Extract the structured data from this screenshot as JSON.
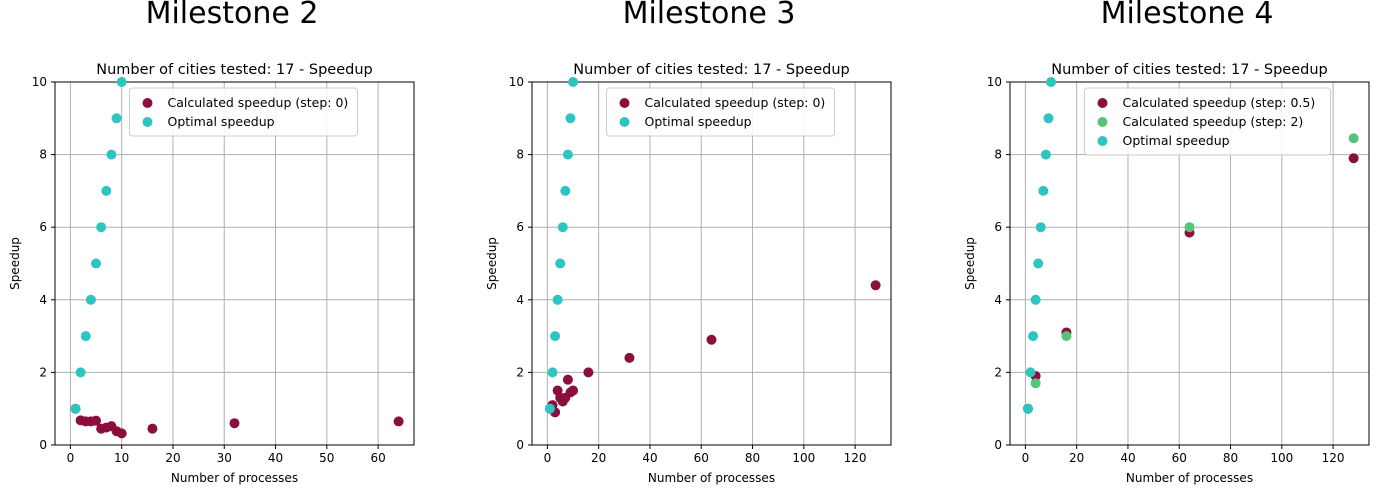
{
  "colors": {
    "calculated": "#8b0f3e",
    "calculated_step2": "#55c47a",
    "optimal": "#2ec4c0",
    "grid": "#b0b0b0"
  },
  "chart_data": [
    {
      "type": "scatter",
      "heading": "Milestone 2",
      "title": "Number of cities tested: 17 - Speedup",
      "xlabel": "Number of processes",
      "ylabel": "Speedup",
      "xlim": [
        -3,
        67
      ],
      "ylim": [
        0,
        10
      ],
      "xticks": [
        0,
        10,
        20,
        30,
        40,
        50,
        60
      ],
      "yticks": [
        0,
        2,
        4,
        6,
        8,
        10
      ],
      "grid": true,
      "legend_position": "top-center",
      "series": [
        {
          "name": "Calculated speedup (step: 0)",
          "color": "#8b0f3e",
          "x": [
            1,
            2,
            3,
            4,
            5,
            6,
            7,
            8,
            9,
            10,
            16,
            32,
            64
          ],
          "y": [
            1.0,
            0.68,
            0.65,
            0.65,
            0.67,
            0.45,
            0.48,
            0.52,
            0.38,
            0.32,
            0.45,
            0.6,
            0.65
          ]
        },
        {
          "name": "Optimal speedup",
          "color": "#2ec4c0",
          "x": [
            1,
            2,
            3,
            4,
            5,
            6,
            7,
            8,
            9,
            10
          ],
          "y": [
            1,
            2,
            3,
            4,
            5,
            6,
            7,
            8,
            9,
            10
          ]
        }
      ]
    },
    {
      "type": "scatter",
      "heading": "Milestone 3",
      "title": "Number of cities tested: 17 - Speedup",
      "xlabel": "Number of processes",
      "ylabel": "Speedup",
      "xlim": [
        -6,
        134
      ],
      "ylim": [
        0,
        10
      ],
      "xticks": [
        0,
        20,
        40,
        60,
        80,
        100,
        120
      ],
      "yticks": [
        0,
        2,
        4,
        6,
        8,
        10
      ],
      "grid": true,
      "legend_position": "top-center",
      "series": [
        {
          "name": "Calculated speedup (step: 0)",
          "color": "#8b0f3e",
          "x": [
            1,
            2,
            3,
            4,
            5,
            6,
            7,
            8,
            9,
            10,
            16,
            32,
            64,
            128
          ],
          "y": [
            1.0,
            1.1,
            0.9,
            1.5,
            1.3,
            1.2,
            1.3,
            1.8,
            1.45,
            1.5,
            2.0,
            2.4,
            2.9,
            4.4
          ]
        },
        {
          "name": "Optimal speedup",
          "color": "#2ec4c0",
          "x": [
            1,
            2,
            3,
            4,
            5,
            6,
            7,
            8,
            9,
            10
          ],
          "y": [
            1,
            2,
            3,
            4,
            5,
            6,
            7,
            8,
            9,
            10
          ]
        }
      ]
    },
    {
      "type": "scatter",
      "heading": "Milestone 4",
      "title": "Number of cities tested: 17 - Speedup",
      "xlabel": "Number of processes",
      "ylabel": "Speedup",
      "xlim": [
        -6,
        134
      ],
      "ylim": [
        0,
        10
      ],
      "xticks": [
        0,
        20,
        40,
        60,
        80,
        100,
        120
      ],
      "yticks": [
        0,
        2,
        4,
        6,
        8,
        10
      ],
      "grid": true,
      "legend_position": "top-center",
      "series": [
        {
          "name": "Calculated speedup (step: 0.5)",
          "color": "#8b0f3e",
          "x": [
            1,
            4,
            16,
            64,
            128
          ],
          "y": [
            1.0,
            1.9,
            3.1,
            5.85,
            7.9
          ]
        },
        {
          "name": "Calculated speedup (step: 2)",
          "color": "#55c47a",
          "x": [
            1,
            4,
            16,
            64,
            128
          ],
          "y": [
            1.0,
            1.7,
            3.0,
            6.0,
            8.45
          ]
        },
        {
          "name": "Optimal speedup",
          "color": "#2ec4c0",
          "x": [
            1,
            2,
            3,
            4,
            5,
            6,
            7,
            8,
            9,
            10
          ],
          "y": [
            1,
            2,
            3,
            4,
            5,
            6,
            7,
            8,
            9,
            10
          ]
        }
      ]
    }
  ]
}
